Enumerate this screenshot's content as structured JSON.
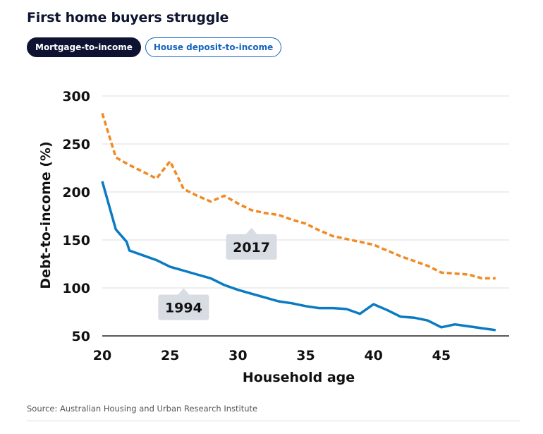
{
  "title": "First home buyers struggle",
  "tabs": [
    {
      "label": "Mortgage-to-income",
      "active": true
    },
    {
      "label": "House deposit-to-income",
      "active": false
    }
  ],
  "source": "Source: Australian Housing and Urban Research Institute",
  "colors": {
    "series_1994": "#0a7bc2",
    "series_2017": "#ef8a24",
    "grid": "#dddddd",
    "label_bg": "#d8dce3"
  },
  "chart_data": {
    "type": "line",
    "xlabel": "Household age",
    "ylabel": "Debt-to-income (%)",
    "xlim": [
      20,
      50
    ],
    "ylim": [
      50,
      300
    ],
    "xticks": [
      20,
      25,
      30,
      35,
      40,
      45
    ],
    "yticks": [
      50,
      100,
      150,
      200,
      250,
      300
    ],
    "grid": true,
    "series": [
      {
        "name": "1994",
        "style": "solid",
        "x": [
          20,
          21,
          21.8,
          22,
          23,
          24,
          25,
          26,
          27,
          28,
          29,
          30,
          31,
          32,
          33,
          34,
          35,
          36,
          37,
          38,
          39,
          40,
          41,
          42,
          43,
          44,
          45,
          46,
          47,
          48,
          49
        ],
        "y": [
          211,
          161,
          148,
          139,
          134,
          129,
          122,
          118,
          114,
          110,
          103,
          98,
          94,
          90,
          86,
          84,
          81,
          79,
          79,
          78,
          73,
          83,
          77,
          70,
          69,
          66,
          59,
          62,
          60,
          58,
          56
        ]
      },
      {
        "name": "2017",
        "style": "dashed",
        "x": [
          20,
          21,
          22,
          23,
          24,
          25,
          26,
          27,
          28,
          29,
          30,
          31,
          32,
          33,
          34,
          35,
          36,
          37,
          38,
          39,
          40,
          41,
          42,
          43,
          44,
          45,
          46,
          47,
          48,
          49
        ],
        "y": [
          282,
          236,
          228,
          221,
          214,
          232,
          203,
          196,
          190,
          196,
          188,
          181,
          178,
          176,
          171,
          167,
          160,
          154,
          151,
          148,
          145,
          139,
          133,
          128,
          123,
          116,
          115,
          114,
          110,
          110
        ]
      }
    ],
    "annotations": [
      {
        "text": "1994",
        "series": "1994",
        "anchor_x": 26
      },
      {
        "text": "2017",
        "series": "2017",
        "anchor_x": 31
      }
    ]
  }
}
